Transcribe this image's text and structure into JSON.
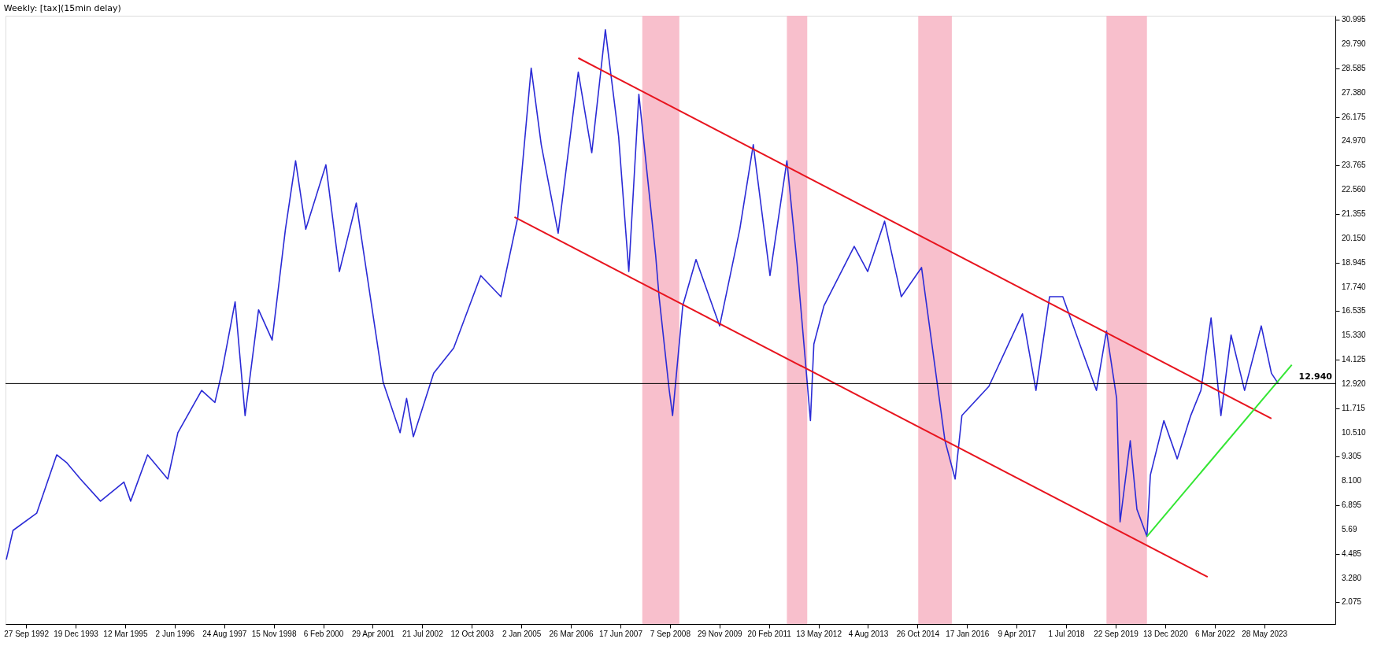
{
  "chart_data": {
    "type": "line",
    "title": "Weekly: [tax](15min delay)",
    "xlim": [
      "1992-03-25",
      "2025-03-01"
    ],
    "xticks": [
      {
        "value": "1992-09-27",
        "label": "27 Sep 1992"
      },
      {
        "value": "1993-12-19",
        "label": "19 Dec 1993"
      },
      {
        "value": "1995-03-12",
        "label": "12 Mar 1995"
      },
      {
        "value": "1996-06-02",
        "label": "2 Jun 1996"
      },
      {
        "value": "1997-08-24",
        "label": "24 Aug 1997"
      },
      {
        "value": "1998-11-15",
        "label": "15 Nov 1998"
      },
      {
        "value": "2000-02-06",
        "label": "6 Feb 2000"
      },
      {
        "value": "2001-04-29",
        "label": "29 Apr 2001"
      },
      {
        "value": "2002-07-21",
        "label": "21 Jul 2002"
      },
      {
        "value": "2003-10-12",
        "label": "12 Oct 2003"
      },
      {
        "value": "2005-01-02",
        "label": "2 Jan 2005"
      },
      {
        "value": "2006-03-26",
        "label": "26 Mar 2006"
      },
      {
        "value": "2007-06-17",
        "label": "17 Jun 2007"
      },
      {
        "value": "2008-09-07",
        "label": "7 Sep 2008"
      },
      {
        "value": "2009-11-29",
        "label": "29 Nov 2009"
      },
      {
        "value": "2011-02-20",
        "label": "20 Feb 2011"
      },
      {
        "value": "2012-05-13",
        "label": "13 May 2012"
      },
      {
        "value": "2013-08-04",
        "label": "4 Aug 2013"
      },
      {
        "value": "2014-10-26",
        "label": "26 Oct 2014"
      },
      {
        "value": "2016-01-17",
        "label": "17 Jan 2016"
      },
      {
        "value": "2017-04-09",
        "label": "9 Apr 2017"
      },
      {
        "value": "2018-07-01",
        "label": "1 Jul 2018"
      },
      {
        "value": "2019-09-22",
        "label": "22 Sep 2019"
      },
      {
        "value": "2020-12-13",
        "label": "13 Dec 2020"
      },
      {
        "value": "2022-03-06",
        "label": "6 Mar 2022"
      },
      {
        "value": "2023-05-28",
        "label": "28 May 2023"
      }
    ],
    "ylim": [
      1.0,
      31.2
    ],
    "yticks": [
      2.075,
      {
        "value": 3.28,
        "label": "3.280"
      },
      4.485,
      5.69,
      6.895,
      {
        "value": 8.1,
        "label": "8.100"
      },
      9.305,
      {
        "value": 10.51,
        "label": "10.510"
      },
      11.715,
      {
        "value": 12.92,
        "label": "12.920"
      },
      14.125,
      {
        "value": 15.33,
        "label": "15.330"
      },
      16.535,
      {
        "value": 17.74,
        "label": "17.740"
      },
      18.945,
      {
        "value": 20.15,
        "label": "20.150"
      },
      21.355,
      {
        "value": 22.56,
        "label": "22.560"
      },
      23.765,
      {
        "value": 24.97,
        "label": "24.970"
      },
      26.175,
      {
        "value": 27.38,
        "label": "27.380"
      },
      28.585,
      {
        "value": 29.79,
        "label": "29.790"
      },
      30.995
    ],
    "series": [
      {
        "color": "#2b2bd6",
        "x": [
          "1992-04",
          "1992-06",
          "1993-01",
          "1993-07",
          "1993-10",
          "1994-02",
          "1994-08",
          "1995-03",
          "1995-05",
          "1995-10",
          "1996-04",
          "1996-07",
          "1997-02",
          "1997-06",
          "1997-08",
          "1997-12",
          "1998-03",
          "1998-07",
          "1998-11",
          "1999-03",
          "1999-06",
          "1999-09",
          "2000-03",
          "2000-07",
          "2000-12",
          "2001-04",
          "2001-08",
          "2002-01",
          "2002-03",
          "2002-05",
          "2002-11",
          "2003-05",
          "2004-01",
          "2004-07",
          "2004-12",
          "2005-04",
          "2005-07",
          "2005-12",
          "2006-06",
          "2006-10",
          "2007-02",
          "2007-06",
          "2007-09",
          "2007-12",
          "2008-05",
          "2008-06",
          "2008-09",
          "2008-10",
          "2009-01",
          "2009-05",
          "2009-12",
          "2010-06",
          "2010-10",
          "2011-03",
          "2011-08",
          "2011-11",
          "2012-03",
          "2012-04",
          "2012-07",
          "2013-04",
          "2013-08",
          "2014-01",
          "2014-06",
          "2014-12",
          "2015-07",
          "2015-10",
          "2015-12",
          "2016-08",
          "2017-06",
          "2017-10",
          "2018-02",
          "2018-06",
          "2018-11",
          "2019-04",
          "2019-07",
          "2019-10",
          "2019-11",
          "2020-02",
          "2020-04",
          "2020-07",
          "2020-08",
          "2020-12",
          "2021-04",
          "2021-08",
          "2021-11",
          "2022-02",
          "2022-05",
          "2022-08",
          "2022-12",
          "2023-05",
          "2023-08",
          "2023-10"
        ],
        "values": [
          4.2,
          5.65,
          6.5,
          9.4,
          9.0,
          8.2,
          7.1,
          8.05,
          7.1,
          9.4,
          8.2,
          10.5,
          12.6,
          12.0,
          13.45,
          17.0,
          11.35,
          16.6,
          15.1,
          20.6,
          24.0,
          20.6,
          23.8,
          18.5,
          21.9,
          17.45,
          13.0,
          10.5,
          12.2,
          10.3,
          13.45,
          14.7,
          18.3,
          17.25,
          21.2,
          28.6,
          24.8,
          20.4,
          28.4,
          24.4,
          30.5,
          25.2,
          18.5,
          27.3,
          19.3,
          17.25,
          12.6,
          11.35,
          16.8,
          19.1,
          15.8,
          20.6,
          24.8,
          18.3,
          24.0,
          18.9,
          11.1,
          14.9,
          16.8,
          19.75,
          18.5,
          21.0,
          17.25,
          18.7,
          10.1,
          8.2,
          11.35,
          12.8,
          16.4,
          12.6,
          17.25,
          17.25,
          14.9,
          12.6,
          15.55,
          12.2,
          6.07,
          10.1,
          6.7,
          5.35,
          8.4,
          11.1,
          9.2,
          11.35,
          12.6,
          16.2,
          11.35,
          15.35,
          12.6,
          15.8,
          13.45,
          12.94
        ]
      },
      {
        "color": "#e8141e",
        "x": [
          "2006-06",
          "2023-08"
        ],
        "values": [
          29.1,
          11.2
        ]
      },
      {
        "color": "#e8141e",
        "x": [
          "2004-11",
          "2022-01"
        ],
        "values": [
          21.2,
          3.34
        ]
      },
      {
        "color": "#33e633",
        "x": [
          "2020-07",
          "2024-02"
        ],
        "values": [
          5.35,
          13.87
        ]
      }
    ],
    "bands": [
      {
        "axis": "x",
        "from": "2008-01",
        "to": "2008-12",
        "color": "#f7b8c6"
      },
      {
        "axis": "x",
        "from": "2011-08",
        "to": "2012-02",
        "color": "#f7b8c6"
      },
      {
        "axis": "x",
        "from": "2014-11",
        "to": "2015-09",
        "color": "#f7b8c6"
      },
      {
        "axis": "x",
        "from": "2019-07",
        "to": "2020-07",
        "color": "#f7b8c6"
      }
    ],
    "ref_lines": [
      {
        "axis": "y",
        "value": 12.94,
        "label": "12.940",
        "color": "#000000"
      }
    ],
    "grid": false,
    "line_style": "solid",
    "marker": "none"
  }
}
